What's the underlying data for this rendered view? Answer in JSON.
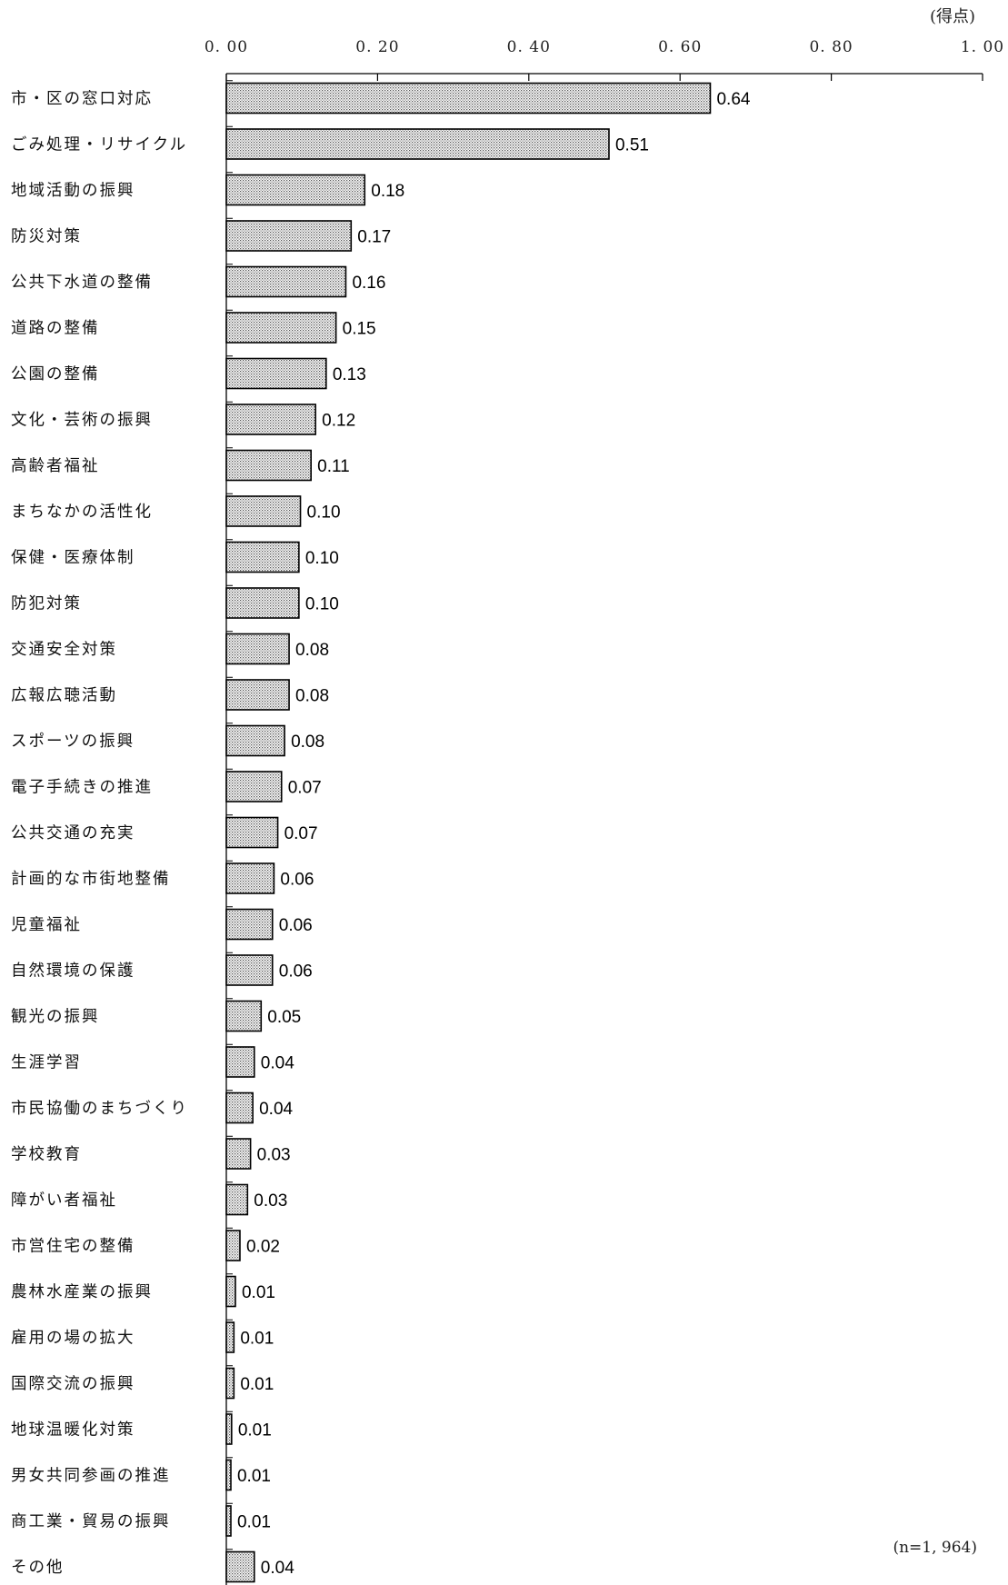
{
  "chart_data": {
    "type": "bar",
    "orientation": "horizontal",
    "unit_label": "(得点)",
    "note": "(n=1, 964)",
    "xlim": [
      0,
      1
    ],
    "ticks": [
      "0. 00",
      "0. 20",
      "0. 40",
      "0. 60",
      "0. 80",
      "1. 00"
    ],
    "tick_values": [
      0,
      0.2,
      0.4,
      0.6,
      0.8,
      1.0
    ],
    "categories": [
      "市・区の窓口対応",
      "ごみ処理・リサイクル",
      "地域活動の振興",
      "防災対策",
      "公共下水道の整備",
      "道路の整備",
      "公園の整備",
      "文化・芸術の振興",
      "高齢者福祉",
      "まちなかの活性化",
      "保健・医療体制",
      "防犯対策",
      "交通安全対策",
      "広報広聴活動",
      "スポーツの振興",
      "電子手続きの推進",
      "公共交通の充実",
      "計画的な市街地整備",
      "児童福祉",
      "自然環境の保護",
      "観光の振興",
      "生涯学習",
      "市民協働のまちづくり",
      "学校教育",
      "障がい者福祉",
      "市営住宅の整備",
      "農林水産業の振興",
      "雇用の場の拡大",
      "国際交流の振興",
      "地球温暖化対策",
      "男女共同参画の推進",
      "商工業・貿易の振興",
      "その他"
    ],
    "values": [
      0.64,
      0.506,
      0.183,
      0.165,
      0.158,
      0.145,
      0.132,
      0.118,
      0.112,
      0.098,
      0.096,
      0.096,
      0.083,
      0.083,
      0.077,
      0.073,
      0.068,
      0.063,
      0.061,
      0.061,
      0.046,
      0.037,
      0.035,
      0.032,
      0.028,
      0.018,
      0.012,
      0.01,
      0.01,
      0.007,
      0.006,
      0.006,
      0.037
    ],
    "value_labels": [
      "0.64",
      "0.51",
      "0.18",
      "0.17",
      "0.16",
      "0.15",
      "0.13",
      "0.12",
      "0.11",
      "0.10",
      "0.10",
      "0.10",
      "0.08",
      "0.08",
      "0.08",
      "0.07",
      "0.07",
      "0.06",
      "0.06",
      "0.06",
      "0.05",
      "0.04",
      "0.04",
      "0.03",
      "0.03",
      "0.02",
      "0.01",
      "0.01",
      "0.01",
      "0.01",
      "0.01",
      "0.01",
      "0.04"
    ],
    "bar_fill": "dotted-gray",
    "grid": false
  }
}
